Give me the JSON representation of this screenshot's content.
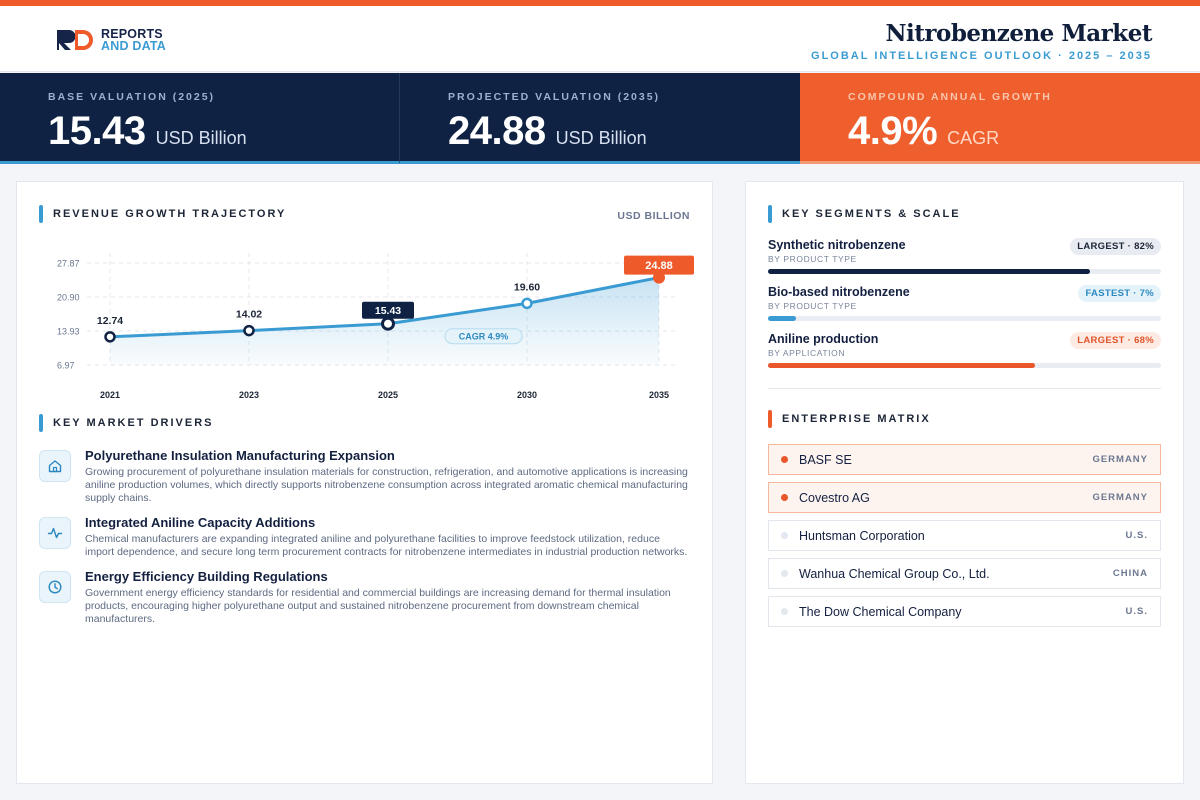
{
  "brand": {
    "logo_line1": "REPORTS",
    "logo_line2": "AND DATA"
  },
  "header": {
    "title": "Nitrobenzene Market",
    "subtitle": "GLOBAL INTELLIGENCE OUTLOOK  ·  2025 – 2035"
  },
  "kpis": [
    {
      "label": "BASE VALUATION (2025)",
      "value": "15.43",
      "unit": "USD Billion"
    },
    {
      "label": "PROJECTED VALUATION (2035)",
      "value": "24.88",
      "unit": "USD Billion"
    },
    {
      "label": "COMPOUND ANNUAL GROWTH",
      "value": "4.9%",
      "unit": "CAGR"
    }
  ],
  "trajectory": {
    "title": "REVENUE GROWTH TRAJECTORY",
    "unit_label": "USD BILLION"
  },
  "chart_data": {
    "type": "area",
    "title": "REVENUE GROWTH TRAJECTORY",
    "ylabel": "USD BILLION",
    "categories": [
      "2021",
      "2023",
      "2025",
      "2030",
      "2035"
    ],
    "values": [
      12.74,
      14.02,
      15.43,
      19.6,
      24.88
    ],
    "value_labels": [
      "12.74",
      "14.02",
      "15.43",
      "19.60",
      "24.88"
    ],
    "y_ticks": [
      "27.87",
      "20.90",
      "13.93",
      "6.97"
    ],
    "ylim": [
      6.97,
      27.87
    ],
    "annotation": "CAGR 4.9%",
    "grid": true,
    "colors": {
      "line": "#3a9bd3",
      "highlight": "#0f2244",
      "final": "#ef5a2a"
    }
  },
  "drivers": {
    "title": "KEY MARKET DRIVERS",
    "items": [
      {
        "icon": "home-icon",
        "title": "Polyurethane Insulation Manufacturing Expansion",
        "desc": "Growing procurement of polyurethane insulation materials for construction, refrigeration, and automotive applications is increasing aniline production volumes, which directly supports nitrobenzene consumption across integrated aromatic chemical manufacturing supply chains."
      },
      {
        "icon": "pulse-icon",
        "title": "Integrated Aniline Capacity Additions",
        "desc": "Chemical manufacturers are expanding integrated aniline and polyurethane facilities to improve feedstock utilization, reduce import dependence, and secure long term procurement contracts for nitrobenzene intermediates in industrial production networks."
      },
      {
        "icon": "clock-icon",
        "title": "Energy Efficiency Building Regulations",
        "desc": "Government energy efficiency standards for residential and commercial buildings are increasing demand for thermal insulation products, encouraging higher polyurethane output and sustained nitrobenzene procurement from downstream chemical manufacturers."
      }
    ]
  },
  "segments": {
    "title": "KEY SEGMENTS & SCALE",
    "items": [
      {
        "name": "Synthetic nitrobenzene",
        "sub": "BY PRODUCT TYPE",
        "badge": "LARGEST · 82%",
        "share": 82,
        "color": "#0f2244",
        "badge_bg": "#e8ebf1",
        "badge_fg": "#1c2536"
      },
      {
        "name": "Bio-based nitrobenzene",
        "sub": "BY PRODUCT TYPE",
        "badge": "FASTEST · 7%",
        "share": 7,
        "color": "#3a9bd3",
        "badge_bg": "#e4f2fa",
        "badge_fg": "#2c88c0"
      },
      {
        "name": "Aniline production",
        "sub": "BY APPLICATION",
        "badge": "LARGEST · 68%",
        "share": 68,
        "color": "#e8562a",
        "badge_bg": "#fdebe3",
        "badge_fg": "#e0542a"
      }
    ]
  },
  "matrix": {
    "title": "ENTERPRISE MATRIX",
    "items": [
      {
        "name": "BASF SE",
        "country": "GERMANY",
        "highlight": true
      },
      {
        "name": "Covestro AG",
        "country": "GERMANY",
        "highlight": true
      },
      {
        "name": "Huntsman Corporation",
        "country": "U.S.",
        "highlight": false
      },
      {
        "name": "Wanhua Chemical Group Co., Ltd.",
        "country": "CHINA",
        "highlight": false
      },
      {
        "name": "The Dow Chemical Company",
        "country": "U.S.",
        "highlight": false
      }
    ]
  }
}
